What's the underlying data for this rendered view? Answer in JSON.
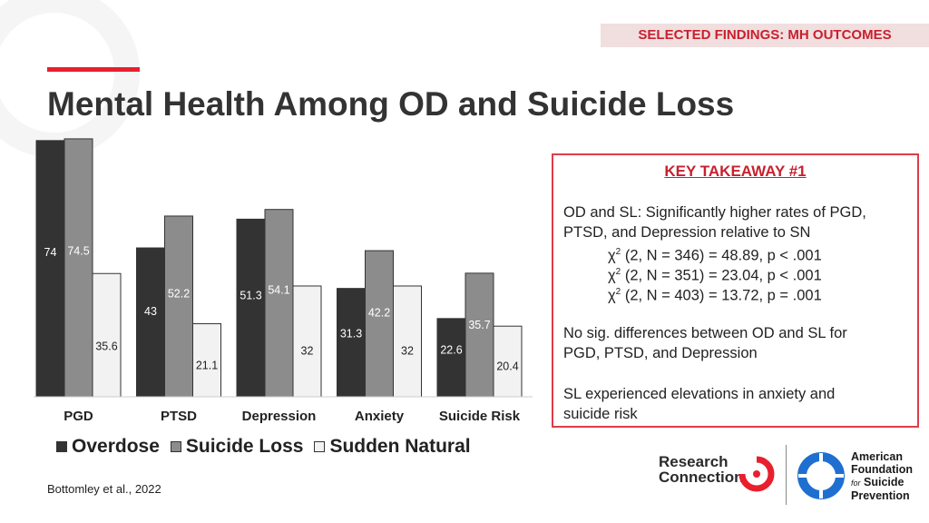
{
  "section_tag": "SELECTED FINDINGS: MH OUTCOMES",
  "title": "Mental Health Among OD and Suicide Loss",
  "chart_data": {
    "type": "bar",
    "categories": [
      "PGD",
      "PTSD",
      "Depression",
      "Anxiety",
      "Suicide Risk"
    ],
    "series": [
      {
        "name": "Overdose",
        "color": "#333333",
        "values": [
          74,
          43,
          51.3,
          31.3,
          22.6
        ],
        "labels": [
          "74",
          "43",
          "51.3",
          "31.3",
          "22.6"
        ]
      },
      {
        "name": "Suicide Loss",
        "color": "#8c8c8c",
        "values": [
          74.5,
          52.2,
          54.1,
          42.2,
          35.7
        ],
        "labels": [
          "74.5",
          "52.2",
          "54.1",
          "42.2",
          "35.7"
        ]
      },
      {
        "name": "Sudden Natural",
        "color": "#f2f2f2",
        "values": [
          35.6,
          21.1,
          32,
          32,
          20.4
        ],
        "labels": [
          "35.6",
          "21.1",
          "32",
          "32",
          "20.4"
        ]
      }
    ],
    "ylim": [
      0,
      75
    ],
    "legend_position": "bottom",
    "grid": false
  },
  "takeaway": {
    "title": "KEY TAKEAWAY #1",
    "para1_line1": "OD and SL: Significantly higher rates of PGD,",
    "para1_line2": "PTSD, and Depression relative to SN",
    "stats": [
      {
        "symbol": "χ",
        "sup": "2",
        "text": " (2, N = 346) = 48.89, p < .001"
      },
      {
        "symbol": "χ",
        "sup": "2",
        "text": " (2, N = 351) = 23.04, p < .001"
      },
      {
        "symbol": "χ",
        "sup": "2",
        "text": " (2, N = 403) = 13.72, p = .001"
      }
    ],
    "para2_line1": "No sig. differences between OD and SL for",
    "para2_line2": "PGD, PTSD, and Depression",
    "para3_line1": "SL experienced elevations in anxiety and",
    "para3_line2": "suicide risk"
  },
  "citation": "Bottomley et al., 2022",
  "logos": {
    "research_connection_line1": "Research",
    "research_connection_line2": "Connection",
    "afsp_line1": "American",
    "afsp_line2": "Foundation",
    "afsp_line3_small": "for",
    "afsp_line3": "Suicide",
    "afsp_line4": "Prevention"
  },
  "colors": {
    "accent": "#e8202e",
    "afsp_blue": "#1f6fd1"
  }
}
